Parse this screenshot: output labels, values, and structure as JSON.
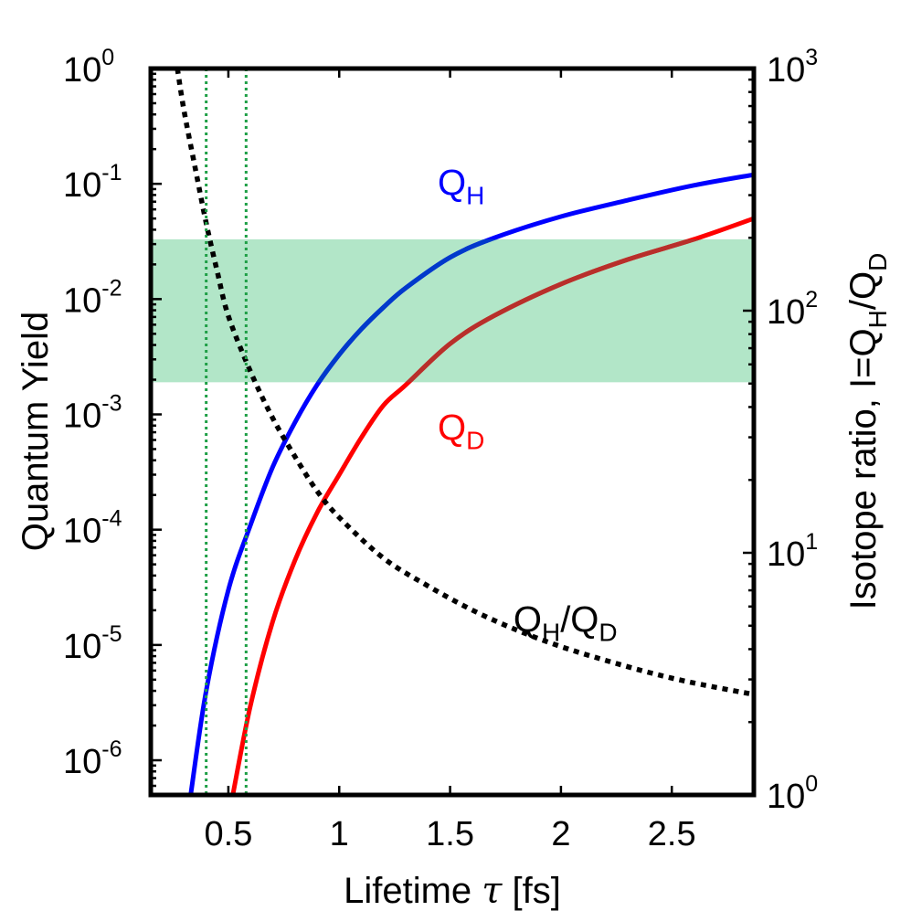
{
  "chart_data": {
    "type": "line",
    "axes": {
      "x": {
        "label_prefix": "Lifetime ",
        "label_symbol": "τ",
        "label_suffix": " [fs]",
        "lim": [
          0.15,
          2.87
        ],
        "scale": "linear",
        "ticks": [
          0.5,
          1,
          1.5,
          2,
          2.5
        ],
        "tick_labels": [
          "0.5",
          "1",
          "1.5",
          "2",
          "2.5"
        ]
      },
      "y_left": {
        "label": "Quantum Yield",
        "scale": "log",
        "lim": [
          5e-07,
          1
        ],
        "ticks": [
          {
            "value": 1,
            "base": "10",
            "exp": "0"
          },
          {
            "value": 0.1,
            "base": "10",
            "exp": "-1"
          },
          {
            "value": 0.01,
            "base": "10",
            "exp": "-2"
          },
          {
            "value": 0.001,
            "base": "10",
            "exp": "-3"
          },
          {
            "value": 0.0001,
            "base": "10",
            "exp": "-4"
          },
          {
            "value": 1e-05,
            "base": "10",
            "exp": "-5"
          },
          {
            "value": 1e-06,
            "base": "10",
            "exp": "-6"
          }
        ]
      },
      "y_right": {
        "label": "Isotope ratio, I=QH/QD",
        "label_parts": {
          "prefix": "Isotope ratio, I=Q",
          "sub1": "H",
          "mid": "/Q",
          "sub2": "D"
        },
        "scale": "log",
        "lim": [
          1,
          1000
        ],
        "ticks": [
          {
            "value": 1000,
            "base": "10",
            "exp": "3"
          },
          {
            "value": 100,
            "base": "10",
            "exp": "2"
          },
          {
            "value": 10,
            "base": "10",
            "exp": "1"
          },
          {
            "value": 1,
            "base": "10",
            "exp": "0"
          }
        ]
      }
    },
    "series": [
      {
        "name": "QH",
        "label_main": "Q",
        "label_sub": "H",
        "color": "#0000ff",
        "highlight_color": "#003cc8",
        "axis": "left",
        "style": "solid",
        "x": [
          0.33,
          0.4,
          0.5,
          0.6,
          0.7,
          0.8,
          0.9,
          1.0,
          1.1,
          1.2,
          1.3,
          1.5,
          1.7,
          2.0,
          2.3,
          2.6,
          2.87
        ],
        "y": [
          5e-07,
          4e-06,
          3e-05,
          0.00011,
          0.00035,
          0.00085,
          0.0018,
          0.0033,
          0.0055,
          0.0085,
          0.0125,
          0.023,
          0.034,
          0.052,
          0.072,
          0.097,
          0.12
        ]
      },
      {
        "name": "QD",
        "label_main": "Q",
        "label_sub": "D",
        "color": "#ff0000",
        "highlight_color": "#b4322d",
        "axis": "left",
        "style": "solid",
        "x": [
          0.52,
          0.6,
          0.7,
          0.8,
          0.9,
          1.0,
          1.1,
          1.2,
          1.3,
          1.5,
          1.7,
          2.0,
          2.3,
          2.6,
          2.87
        ],
        "y": [
          5e-07,
          3e-06,
          1.6e-05,
          5.4e-05,
          0.00014,
          0.0003,
          0.00063,
          0.0012,
          0.0018,
          0.0041,
          0.0072,
          0.0135,
          0.022,
          0.033,
          0.05
        ]
      },
      {
        "name": "QH/QD",
        "label_parts": {
          "main1": "Q",
          "sub1": "H",
          "mid": "/Q",
          "sub2": "D"
        },
        "color": "#000000",
        "axis": "right",
        "style": "dotted",
        "x": [
          0.27,
          0.3,
          0.35,
          0.4,
          0.45,
          0.5,
          0.6,
          0.7,
          0.8,
          0.9,
          1.0,
          1.2,
          1.4,
          1.6,
          1.8,
          2.0,
          2.2,
          2.4,
          2.6,
          2.87
        ],
        "y": [
          1000,
          670,
          390,
          230,
          145,
          95,
          56,
          36,
          25,
          18,
          14,
          9.5,
          7.3,
          5.8,
          4.8,
          4.1,
          3.6,
          3.2,
          2.9,
          2.6
        ]
      }
    ],
    "shaded_band": {
      "axis": "left",
      "y_range": [
        0.0019,
        0.033
      ],
      "color": "#b2e6c8"
    },
    "vertical_lines": [
      {
        "x": 0.4,
        "color": "#1e9f46",
        "style": "dotted"
      },
      {
        "x": 0.58,
        "color": "#1e9f46",
        "style": "dotted"
      }
    ],
    "annotations": [
      {
        "series": "QH",
        "x": 1.55,
        "y_left": 0.08
      },
      {
        "series": "QD",
        "x": 1.55,
        "y_left": 0.0006
      },
      {
        "series": "QH/QD",
        "x": 2.02,
        "y_left": 1.3e-05
      }
    ]
  }
}
